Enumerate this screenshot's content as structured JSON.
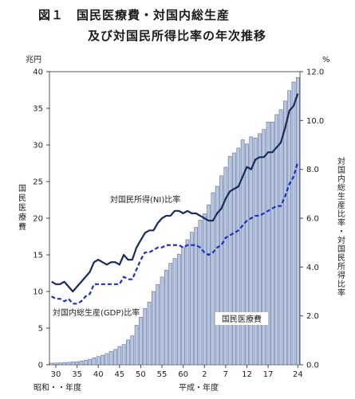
{
  "title_line1": "図１　国民医療費・対国内総生産",
  "title_line2": "及び対国民所得比率の年次推移",
  "chart_data": {
    "type": "bar",
    "left_unit": "兆円",
    "right_unit": "%",
    "left_axis_label": "国民医療費",
    "right_axis_label": "対国内総生産比率・対国民所得比率",
    "x_axis_left_label": "昭和・・年度",
    "x_axis_right_label": "平成・年度",
    "x_tick_labels": [
      "30",
      "35",
      "40",
      "45",
      "50",
      "55",
      "60",
      "2",
      "7",
      "12",
      "17",
      "24"
    ],
    "ylim_left": [
      0,
      40
    ],
    "ylim_right": [
      0.0,
      12.0
    ],
    "left_ticks": [
      "0",
      "5",
      "10",
      "15",
      "20",
      "25",
      "30",
      "35",
      "40"
    ],
    "right_ticks": [
      "0.0",
      "2.0",
      "4.0",
      "6.0",
      "8.0",
      "10.0",
      "12.0"
    ],
    "years": [
      "S29",
      "S30",
      "S31",
      "S32",
      "S33",
      "S34",
      "S35",
      "S36",
      "S37",
      "S38",
      "S39",
      "S40",
      "S41",
      "S42",
      "S43",
      "S44",
      "S45",
      "S46",
      "S47",
      "S48",
      "S49",
      "S50",
      "S51",
      "S52",
      "S53",
      "S54",
      "S55",
      "S56",
      "S57",
      "S58",
      "S59",
      "S60",
      "S61",
      "S62",
      "S63",
      "H1",
      "H2",
      "H3",
      "H4",
      "H5",
      "H6",
      "H7",
      "H8",
      "H9",
      "H10",
      "H11",
      "H12",
      "H13",
      "H14",
      "H15",
      "H16",
      "H17",
      "H18",
      "H19",
      "H20",
      "H21",
      "H22",
      "H23",
      "H24"
    ],
    "series": [
      {
        "name": "国民医療費",
        "axis": "left",
        "style": "bar",
        "color": "#b8c6e0",
        "values": [
          0.22,
          0.24,
          0.26,
          0.3,
          0.33,
          0.4,
          0.41,
          0.52,
          0.61,
          0.75,
          0.94,
          1.12,
          1.3,
          1.53,
          1.81,
          2.08,
          2.5,
          2.76,
          3.39,
          3.95,
          5.38,
          6.48,
          7.68,
          8.57,
          10.0,
          10.95,
          11.98,
          12.9,
          13.85,
          14.5,
          15.09,
          16.02,
          17.07,
          18.08,
          18.75,
          19.73,
          20.61,
          21.83,
          23.48,
          24.36,
          25.79,
          26.96,
          28.45,
          28.91,
          29.58,
          30.7,
          30.14,
          31.1,
          30.95,
          31.54,
          32.11,
          33.13,
          33.13,
          34.14,
          34.81,
          36.0,
          37.42,
          38.59,
          39.21
        ]
      },
      {
        "name": "対国民所得(NI)比率",
        "axis": "right",
        "style": "solid",
        "color": "#1a2a5c",
        "values": [
          3.4,
          3.3,
          3.3,
          3.4,
          3.2,
          3.0,
          3.2,
          3.4,
          3.6,
          3.8,
          4.2,
          4.3,
          4.2,
          4.1,
          4.2,
          4.2,
          4.1,
          4.5,
          4.3,
          4.3,
          4.8,
          5.1,
          5.4,
          5.5,
          5.5,
          5.8,
          6.0,
          6.1,
          6.1,
          6.3,
          6.3,
          6.2,
          6.3,
          6.2,
          6.2,
          6.1,
          6.0,
          5.9,
          5.9,
          6.2,
          6.4,
          6.8,
          7.1,
          7.2,
          7.3,
          7.7,
          8.1,
          8.0,
          8.4,
          8.5,
          8.5,
          8.7,
          8.7,
          8.9,
          9.1,
          9.7,
          10.4,
          10.6,
          11.1
        ]
      },
      {
        "name": "対国内総生産(GDP)比率",
        "axis": "right",
        "style": "dashed",
        "color": "#1c2fc4",
        "values": [
          2.8,
          2.7,
          2.7,
          2.6,
          2.7,
          2.5,
          2.5,
          2.6,
          2.8,
          2.9,
          3.3,
          3.3,
          3.3,
          3.3,
          3.3,
          3.3,
          3.3,
          3.6,
          3.5,
          3.5,
          3.9,
          4.3,
          4.6,
          4.6,
          4.7,
          4.8,
          4.8,
          4.9,
          4.9,
          4.9,
          4.9,
          4.8,
          4.9,
          4.9,
          4.9,
          4.8,
          4.6,
          4.5,
          4.6,
          4.8,
          4.9,
          5.2,
          5.3,
          5.4,
          5.5,
          5.7,
          5.9,
          6.0,
          6.1,
          6.1,
          6.2,
          6.3,
          6.4,
          6.5,
          6.5,
          6.9,
          7.4,
          7.7,
          8.3
        ]
      }
    ],
    "annotations": {
      "ni": "対国民所得(NI)比率",
      "gdp": "対国内総生産(GDP)比率",
      "bars": "国民医療費"
    }
  }
}
